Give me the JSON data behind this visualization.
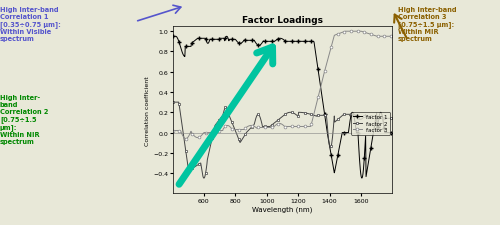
{
  "title": "Factor Loadings",
  "xlabel": "Wavelength (nm)",
  "ylabel": "Correlation coefficient",
  "xlim": [
    400,
    1800
  ],
  "ylim": [
    -0.6,
    1.05
  ],
  "yticks": [
    -0.4,
    -0.2,
    0.0,
    0.2,
    0.4,
    0.6,
    0.8,
    1
  ],
  "xticks": [
    600,
    800,
    1000,
    1200,
    1400,
    1600
  ],
  "legend_labels": [
    "factor 1",
    "factor 2",
    "factor 3"
  ],
  "annotation_left1": "High Inter-band\nCorrelation 1\n[0.35÷0.75 μm]:\nWithin Visible\nspectrum",
  "annotation_left2": "High Inter-\nband\nCorrelation 2\n[0.75÷1.5\nμm]:\nWithin NIR\nspectrum",
  "annotation_right": "High Inter-band\nCorrelation 3\n[0.75÷1.5 μm]:\nWithin MIR\nspectrum",
  "ann_left1_color": "#5555CC",
  "ann_left2_color": "#008800",
  "ann_right_color": "#8B6000",
  "bg_color": "#E8E8D8",
  "figsize": [
    5.0,
    2.26
  ],
  "dpi": 100
}
